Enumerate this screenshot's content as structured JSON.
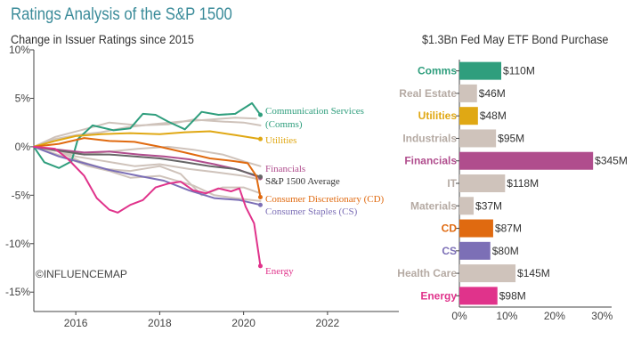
{
  "header": {
    "title": "Ratings Analysis of the S&P 1500",
    "left_subtitle": "Change in Issuer Ratings since 2015",
    "right_subtitle": "$1.3Bn Fed May ETF Bond Purchase",
    "watermark": "©INFLUENCEMAP"
  },
  "chart_data": [
    {
      "type": "line",
      "title": "Change in Issuer Ratings since 2015",
      "xlabel": "",
      "ylabel": "",
      "xlim": [
        2015,
        2023.7
      ],
      "ylim": [
        -17,
        10
      ],
      "x_ticks": [
        2016,
        2018,
        2020,
        2022
      ],
      "x_tick_labels": [
        "2016",
        "2018",
        "2020",
        "2022"
      ],
      "y_ticks": [
        10,
        5,
        0,
        -5,
        -10,
        -15
      ],
      "y_tick_labels": [
        "10%",
        "5%",
        "0%",
        "-5%",
        "-10%",
        "-15%"
      ],
      "background_series_color": "#cfc3bb",
      "background_series": [
        [
          [
            2015,
            0
          ],
          [
            2015.5,
            0.8
          ],
          [
            2016,
            1.2
          ],
          [
            2016.6,
            1.5
          ],
          [
            2017.2,
            2.0
          ],
          [
            2017.8,
            2.3
          ],
          [
            2018.5,
            2.6
          ],
          [
            2019.2,
            2.8
          ],
          [
            2019.8,
            3.0
          ],
          [
            2020.3,
            2.9
          ]
        ],
        [
          [
            2015,
            0
          ],
          [
            2015.6,
            -0.5
          ],
          [
            2016.2,
            -0.8
          ],
          [
            2016.8,
            -0.5
          ],
          [
            2017.5,
            -0.2
          ],
          [
            2018.2,
            0.0
          ],
          [
            2018.8,
            -0.3
          ],
          [
            2019.5,
            -0.8
          ],
          [
            2020.0,
            -1.5
          ],
          [
            2020.4,
            -2.0
          ]
        ],
        [
          [
            2015,
            0
          ],
          [
            2015.5,
            1.0
          ],
          [
            2016.2,
            1.8
          ],
          [
            2016.8,
            2.5
          ],
          [
            2017.5,
            2.2
          ],
          [
            2018.2,
            2.3
          ],
          [
            2018.8,
            2.8
          ],
          [
            2019.5,
            2.6
          ],
          [
            2020.0,
            2.5
          ],
          [
            2020.4,
            2.2
          ]
        ],
        [
          [
            2015,
            0
          ],
          [
            2015.7,
            -1.0
          ],
          [
            2016.3,
            -2.0
          ],
          [
            2016.8,
            -2.5
          ],
          [
            2017.3,
            -3.2
          ],
          [
            2018.0,
            -3.0
          ],
          [
            2018.8,
            -4.0
          ],
          [
            2019.3,
            -5.0
          ],
          [
            2019.8,
            -5.3
          ],
          [
            2020.4,
            -5.6
          ]
        ],
        [
          [
            2015,
            0
          ],
          [
            2015.6,
            -0.5
          ],
          [
            2016.1,
            -1.5
          ],
          [
            2016.7,
            -2.3
          ],
          [
            2017.3,
            -2.5
          ],
          [
            2018.0,
            -2.0
          ],
          [
            2018.5,
            -2.8
          ],
          [
            2019.0,
            -5.0
          ],
          [
            2019.5,
            -4.2
          ],
          [
            2020.0,
            -4.2
          ],
          [
            2020.4,
            -4.8
          ]
        ],
        [
          [
            2015,
            0
          ],
          [
            2015.5,
            -0.3
          ],
          [
            2016.0,
            -1.0
          ],
          [
            2016.7,
            -1.5
          ],
          [
            2017.4,
            -2.0
          ],
          [
            2018.0,
            -1.8
          ],
          [
            2018.7,
            -2.3
          ],
          [
            2019.3,
            -2.6
          ],
          [
            2020.0,
            -3.0
          ],
          [
            2020.4,
            -3.4
          ]
        ]
      ],
      "series": [
        {
          "name": "Communication Services (Comms)",
          "color": "#2f9e7d",
          "points": [
            [
              2015,
              0
            ],
            [
              2015.25,
              -1.6
            ],
            [
              2015.6,
              -2.2
            ],
            [
              2015.9,
              -1.5
            ],
            [
              2016.05,
              0.8
            ],
            [
              2016.4,
              2.2
            ],
            [
              2016.9,
              1.7
            ],
            [
              2017.3,
              1.9
            ],
            [
              2017.6,
              3.4
            ],
            [
              2017.9,
              3.3
            ],
            [
              2018.2,
              2.6
            ],
            [
              2018.6,
              1.8
            ],
            [
              2019.0,
              3.6
            ],
            [
              2019.4,
              3.3
            ],
            [
              2019.8,
              3.4
            ],
            [
              2020.2,
              4.5
            ],
            [
              2020.4,
              3.3
            ]
          ]
        },
        {
          "name": "Utilities",
          "color": "#e0a814",
          "points": [
            [
              2015,
              0
            ],
            [
              2015.5,
              0.6
            ],
            [
              2016.0,
              1.1
            ],
            [
              2016.6,
              1.3
            ],
            [
              2017.3,
              1.4
            ],
            [
              2018.0,
              1.3
            ],
            [
              2018.6,
              1.5
            ],
            [
              2019.2,
              1.6
            ],
            [
              2019.8,
              1.2
            ],
            [
              2020.4,
              0.8
            ]
          ]
        },
        {
          "name": "Financials",
          "color": "#b04d8d",
          "points": [
            [
              2015,
              0
            ],
            [
              2015.6,
              -0.3
            ],
            [
              2016.2,
              -0.6
            ],
            [
              2016.8,
              -0.5
            ],
            [
              2017.5,
              -0.8
            ],
            [
              2018.1,
              -1.0
            ],
            [
              2018.7,
              -1.3
            ],
            [
              2019.3,
              -1.8
            ],
            [
              2019.9,
              -2.4
            ],
            [
              2020.4,
              -3.2
            ]
          ]
        },
        {
          "name": "S&P 1500 Average",
          "color": "#666666",
          "points": [
            [
              2015,
              0
            ],
            [
              2015.6,
              -0.4
            ],
            [
              2016.2,
              -0.8
            ],
            [
              2016.8,
              -0.8
            ],
            [
              2017.4,
              -1.0
            ],
            [
              2018.0,
              -1.2
            ],
            [
              2018.6,
              -1.6
            ],
            [
              2019.2,
              -2.0
            ],
            [
              2019.8,
              -2.3
            ],
            [
              2020.4,
              -3.1
            ]
          ]
        },
        {
          "name": "Consumer Discretionary (CD)",
          "color": "#e06a10",
          "points": [
            [
              2015,
              0
            ],
            [
              2015.6,
              0.3
            ],
            [
              2016.2,
              0.9
            ],
            [
              2016.8,
              0.6
            ],
            [
              2017.4,
              0.5
            ],
            [
              2018.0,
              0.0
            ],
            [
              2018.6,
              -0.6
            ],
            [
              2019.2,
              -1.2
            ],
            [
              2019.8,
              -1.5
            ],
            [
              2020.1,
              -1.7
            ],
            [
              2020.3,
              -3.0
            ],
            [
              2020.4,
              -5.2
            ]
          ]
        },
        {
          "name": "Consumer Staples (CS)",
          "color": "#7c6fb6",
          "points": [
            [
              2015,
              0
            ],
            [
              2015.6,
              -1.0
            ],
            [
              2016.2,
              -1.7
            ],
            [
              2016.8,
              -2.4
            ],
            [
              2017.5,
              -3.0
            ],
            [
              2018.1,
              -3.5
            ],
            [
              2018.7,
              -4.5
            ],
            [
              2019.3,
              -5.3
            ],
            [
              2019.9,
              -5.5
            ],
            [
              2020.4,
              -6.0
            ]
          ]
        },
        {
          "name": "Energy",
          "color": "#e0338b",
          "points": [
            [
              2015,
              0
            ],
            [
              2015.5,
              -0.2
            ],
            [
              2015.8,
              -1.2
            ],
            [
              2016.2,
              -3.0
            ],
            [
              2016.5,
              -5.3
            ],
            [
              2016.8,
              -6.5
            ],
            [
              2017.0,
              -6.8
            ],
            [
              2017.3,
              -6.0
            ],
            [
              2017.6,
              -5.5
            ],
            [
              2017.9,
              -4.2
            ],
            [
              2018.2,
              -3.8
            ],
            [
              2018.5,
              -3.6
            ],
            [
              2018.8,
              -4.5
            ],
            [
              2019.1,
              -4.8
            ],
            [
              2019.4,
              -4.3
            ],
            [
              2019.7,
              -4.6
            ],
            [
              2019.9,
              -4.3
            ],
            [
              2020.05,
              -6.2
            ],
            [
              2020.25,
              -7.9
            ],
            [
              2020.4,
              -12.3
            ]
          ]
        }
      ],
      "labels": [
        {
          "series": "Communication Services (Comms)",
          "lines": [
            "Communication Services",
            "(Comms)"
          ],
          "color": "#2f9e7d"
        },
        {
          "series": "Utilities",
          "lines": [
            "Utilities"
          ],
          "color": "#e0a814"
        },
        {
          "series": "Financials",
          "lines": [
            "Financials"
          ],
          "color": "#b04d8d"
        },
        {
          "series": "S&P 1500 Average",
          "lines": [
            "S&P 1500 Average"
          ],
          "color": "#333333"
        },
        {
          "series": "Consumer Discretionary (CD)",
          "lines": [
            "Consumer Discretionary (CD)"
          ],
          "color": "#e06a10"
        },
        {
          "series": "Consumer Staples (CS)",
          "lines": [
            "Consumer Staples (CS)"
          ],
          "color": "#7c6fb6"
        },
        {
          "series": "Energy",
          "lines": [
            "Energy"
          ],
          "color": "#e0338b"
        }
      ]
    },
    {
      "type": "bar",
      "orientation": "horizontal",
      "title": "$1.3Bn Fed May ETF Bond Purchase",
      "xlim": [
        0,
        32
      ],
      "x_ticks": [
        0,
        10,
        20,
        30
      ],
      "x_tick_labels": [
        "0%",
        "10%",
        "20%",
        "30%"
      ],
      "categories": [
        "Comms",
        "Real Estate",
        "Utilities",
        "Industrials",
        "Financials",
        "IT",
        "Materials",
        "CD",
        "CS",
        "Health Care",
        "Energy"
      ],
      "values": [
        8.8,
        3.7,
        3.9,
        7.7,
        28.1,
        9.6,
        3.0,
        7.1,
        6.5,
        11.8,
        8.0
      ],
      "value_labels": [
        "$110M",
        "$46M",
        "$48M",
        "$95M",
        "$345M",
        "$118M",
        "$37M",
        "$87M",
        "$80M",
        "$145M",
        "$98M"
      ],
      "colors": [
        "#2f9e7d",
        "#cfc3bb",
        "#e0a814",
        "#cfc3bb",
        "#b04d8d",
        "#cfc3bb",
        "#cfc3bb",
        "#e06a10",
        "#7c6fb6",
        "#cfc3bb",
        "#e0338b"
      ],
      "label_colors": [
        "#2f9e7d",
        "#b5aaa3",
        "#e0a814",
        "#b5aaa3",
        "#b04d8d",
        "#b5aaa3",
        "#b5aaa3",
        "#e06a10",
        "#7c6fb6",
        "#b5aaa3",
        "#e0338b"
      ]
    }
  ]
}
